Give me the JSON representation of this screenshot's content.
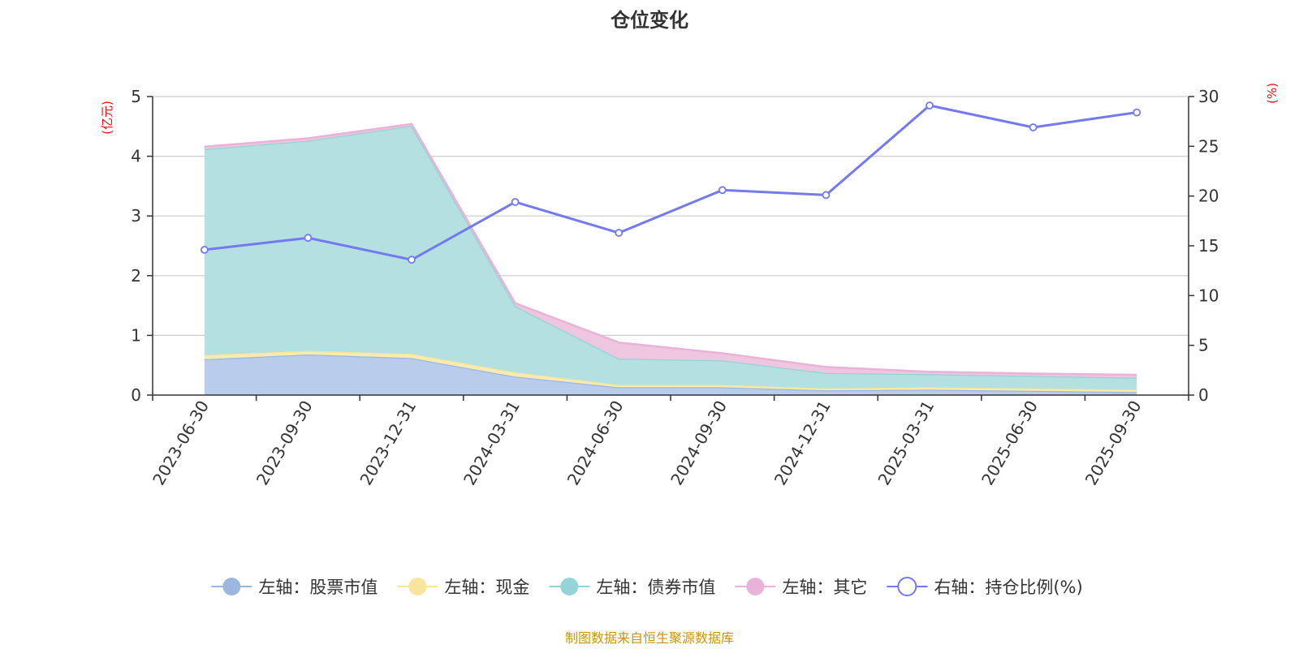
{
  "chart_data": {
    "type": "area",
    "title": "仓位变化",
    "categories": [
      "2023-06-30",
      "2023-09-30",
      "2023-12-31",
      "2024-03-31",
      "2024-06-30",
      "2024-09-30",
      "2024-12-31",
      "2025-03-31",
      "2025-06-30",
      "2025-09-30"
    ],
    "left_axis": {
      "unit": "(亿元)",
      "ylim": [
        0,
        5
      ],
      "ticks": [
        0,
        1,
        2,
        3,
        4,
        5
      ]
    },
    "right_axis": {
      "unit": "(%)",
      "ylim": [
        0,
        30
      ],
      "ticks": [
        0,
        5,
        10,
        15,
        20,
        25,
        30
      ]
    },
    "series": [
      {
        "name": "左轴：股票市值",
        "axis": "left",
        "stacked": true,
        "color": "#9bb7e0",
        "fill": "#b9cceb",
        "values": [
          0.6,
          0.68,
          0.62,
          0.31,
          0.13,
          0.13,
          0.08,
          0.09,
          0.07,
          0.05
        ]
      },
      {
        "name": "左轴：现金",
        "axis": "left",
        "stacked": true,
        "color": "#f6e59b",
        "fill": "#f8ebb0",
        "values": [
          0.07,
          0.06,
          0.07,
          0.07,
          0.04,
          0.04,
          0.03,
          0.04,
          0.04,
          0.04
        ]
      },
      {
        "name": "左轴：债券市值",
        "axis": "left",
        "stacked": true,
        "color": "#94d3d6",
        "fill": "#b4e0e1",
        "values": [
          3.45,
          3.52,
          3.82,
          1.11,
          0.44,
          0.41,
          0.26,
          0.22,
          0.21,
          0.2
        ]
      },
      {
        "name": "左轴：其它",
        "axis": "left",
        "stacked": true,
        "color": "#e9b2d8",
        "fill": "#eec6df",
        "values": [
          0.04,
          0.04,
          0.03,
          0.05,
          0.27,
          0.12,
          0.1,
          0.04,
          0.04,
          0.05
        ]
      },
      {
        "name": "右轴：持仓比例(%)",
        "axis": "right",
        "stacked": false,
        "color": "#7479ef",
        "fill": "none",
        "values": [
          14.6,
          15.8,
          13.6,
          19.4,
          16.3,
          20.6,
          20.1,
          29.1,
          26.9,
          28.4
        ]
      }
    ],
    "legend_position": "bottom",
    "grid": true,
    "source": "制图数据来自恒生聚源数据库"
  }
}
